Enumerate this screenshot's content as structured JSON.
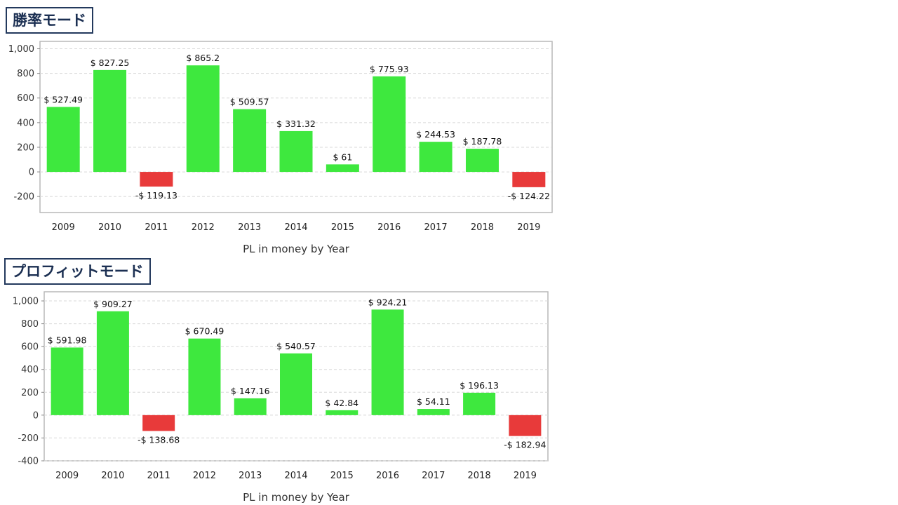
{
  "chart_data": [
    {
      "type": "bar",
      "mode_label": "勝率モード",
      "title": "",
      "xlabel": "PL in money by Year",
      "ylabel": "",
      "categories": [
        "2009",
        "2010",
        "2011",
        "2012",
        "2013",
        "2014",
        "2015",
        "2016",
        "2017",
        "2018",
        "2019"
      ],
      "values": [
        527.49,
        827.25,
        -119.13,
        865.2,
        509.57,
        331.32,
        61,
        775.93,
        244.53,
        187.78,
        -124.22
      ],
      "data_labels": [
        "$ 527.49",
        "$ 827.25",
        "-$ 119.13",
        "$ 865.2",
        "$ 509.57",
        "$ 331.32",
        "$ 61",
        "$ 775.93",
        "$ 244.53",
        "$ 187.78",
        "-$ 124.22"
      ],
      "ylim": [
        -330,
        1060
      ],
      "yticks": [
        -200,
        0,
        200,
        400,
        600,
        800,
        1000
      ],
      "ytick_labels": [
        "-200",
        "0",
        "200",
        "400",
        "600",
        "800",
        "1,000"
      ],
      "grid": true,
      "colors": {
        "positive": "#3ee83e",
        "negative": "#e83a3a"
      }
    },
    {
      "type": "bar",
      "mode_label": "プロフィットモード",
      "title": "",
      "xlabel": "PL in money by Year",
      "ylabel": "",
      "categories": [
        "2009",
        "2010",
        "2011",
        "2012",
        "2013",
        "2014",
        "2015",
        "2016",
        "2017",
        "2018",
        "2019"
      ],
      "values": [
        591.98,
        909.27,
        -138.68,
        670.49,
        147.16,
        540.57,
        42.84,
        924.21,
        54.11,
        196.13,
        -182.94
      ],
      "data_labels": [
        "$ 591.98",
        "$ 909.27",
        "-$ 138.68",
        "$ 670.49",
        "$ 147.16",
        "$ 540.57",
        "$ 42.84",
        "$ 924.21",
        "$ 54.11",
        "$ 196.13",
        "-$ 182.94"
      ],
      "ylim": [
        -400,
        1080
      ],
      "yticks": [
        -400,
        -200,
        0,
        200,
        400,
        600,
        800,
        1000
      ],
      "ytick_labels": [
        "-400",
        "-200",
        "0",
        "200",
        "400",
        "600",
        "800",
        "1,000"
      ],
      "grid": true,
      "colors": {
        "positive": "#3ee83e",
        "negative": "#e83a3a"
      }
    }
  ]
}
